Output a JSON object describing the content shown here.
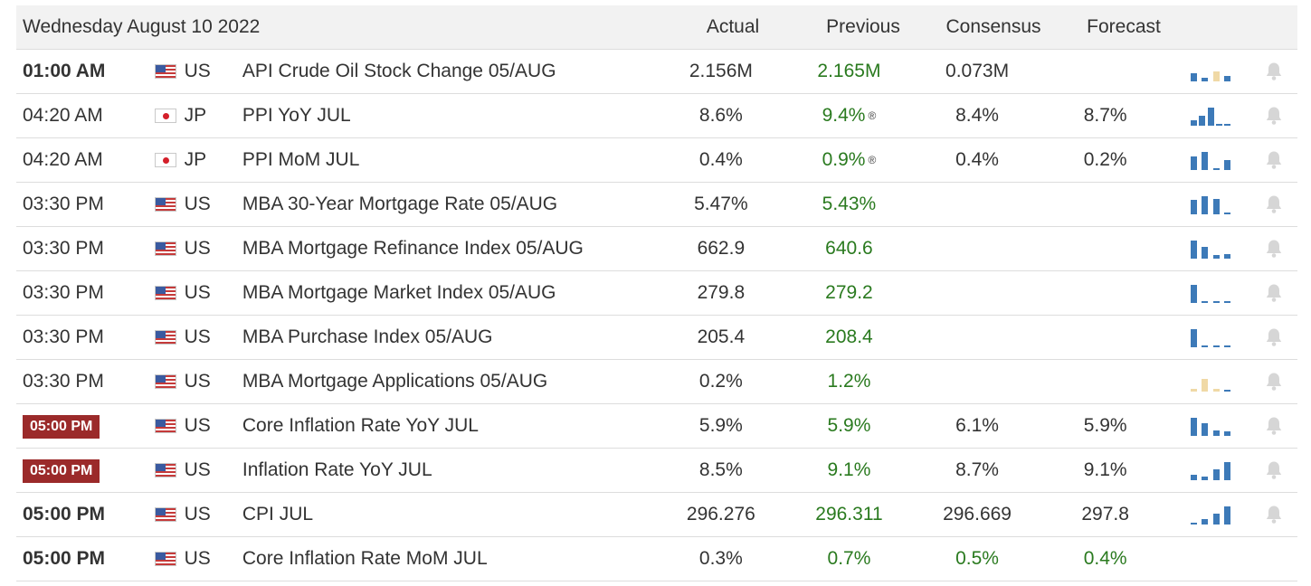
{
  "calendar": {
    "date_label": "Wednesday August 10 2022",
    "columns": {
      "actual": "Actual",
      "previous": "Previous",
      "consensus": "Consensus",
      "forecast": "Forecast"
    },
    "colors": {
      "positive": "#2a7a1f",
      "badge": "#9b2a2a",
      "spark_blue": "#3d7ab8",
      "spark_tan": "#f0d9a6"
    },
    "rows": [
      {
        "time": "01:00 AM",
        "time_style": "bold",
        "flag": "us",
        "country": "US",
        "event": "API Crude Oil Stock Change 05/AUG",
        "actual": "2.156M",
        "previous": "2.165M",
        "revised": "",
        "consensus": "0.073M",
        "forecast": "",
        "spark": [
          {
            "v": 0.45,
            "c": "b"
          },
          {
            "v": 0.2,
            "c": "b"
          },
          {
            "v": 0.55,
            "c": "t"
          },
          {
            "v": 0.3,
            "c": "b"
          }
        ],
        "icon": "bell-icon"
      },
      {
        "time": "04:20 AM",
        "time_style": "normal",
        "flag": "jp",
        "country": "JP",
        "event": "PPI YoY JUL",
        "actual": "8.6%",
        "previous": "9.4%",
        "revised": "®",
        "consensus": "8.4%",
        "forecast": "8.7%",
        "spark": [
          {
            "v": 0.3,
            "c": "b"
          },
          {
            "v": 0.55,
            "c": "b"
          },
          {
            "v": 1.0,
            "c": "b"
          },
          {
            "v": 0.1,
            "c": "b"
          },
          {
            "v": 0.05,
            "c": "b"
          }
        ],
        "icon": "bell-icon"
      },
      {
        "time": "04:20 AM",
        "time_style": "normal",
        "flag": "jp",
        "country": "JP",
        "event": "PPI MoM JUL",
        "actual": "0.4%",
        "previous": "0.9%",
        "revised": "®",
        "consensus": "0.4%",
        "forecast": "0.2%",
        "spark": [
          {
            "v": 0.75,
            "c": "b"
          },
          {
            "v": 1.0,
            "c": "b"
          },
          {
            "v": 0.0,
            "c": "b"
          },
          {
            "v": 0.55,
            "c": "b"
          }
        ],
        "icon": "bell-icon"
      },
      {
        "time": "03:30 PM",
        "time_style": "normal",
        "flag": "us",
        "country": "US",
        "event": "MBA 30-Year Mortgage Rate 05/AUG",
        "actual": "5.47%",
        "previous": "5.43%",
        "revised": "",
        "consensus": "",
        "forecast": "",
        "spark": [
          {
            "v": 0.8,
            "c": "b"
          },
          {
            "v": 1.0,
            "c": "b"
          },
          {
            "v": 0.85,
            "c": "b"
          },
          {
            "v": 0.05,
            "c": "b"
          }
        ],
        "icon": "bell-icon"
      },
      {
        "time": "03:30 PM",
        "time_style": "normal",
        "flag": "us",
        "country": "US",
        "event": "MBA Mortgage Refinance Index 05/AUG",
        "actual": "662.9",
        "previous": "640.6",
        "revised": "",
        "consensus": "",
        "forecast": "",
        "spark": [
          {
            "v": 1.0,
            "c": "b"
          },
          {
            "v": 0.65,
            "c": "b"
          },
          {
            "v": 0.2,
            "c": "b"
          },
          {
            "v": 0.25,
            "c": "b"
          }
        ],
        "icon": "bell-icon"
      },
      {
        "time": "03:30 PM",
        "time_style": "normal",
        "flag": "us",
        "country": "US",
        "event": "MBA Mortgage Market Index 05/AUG",
        "actual": "279.8",
        "previous": "279.2",
        "revised": "",
        "consensus": "",
        "forecast": "",
        "spark": [
          {
            "v": 1.0,
            "c": "b"
          },
          {
            "v": 0.12,
            "c": "b"
          },
          {
            "v": 0.1,
            "c": "b"
          },
          {
            "v": 0.1,
            "c": "b"
          }
        ],
        "icon": "bell-icon"
      },
      {
        "time": "03:30 PM",
        "time_style": "normal",
        "flag": "us",
        "country": "US",
        "event": "MBA Purchase Index 05/AUG",
        "actual": "205.4",
        "previous": "208.4",
        "revised": "",
        "consensus": "",
        "forecast": "",
        "spark": [
          {
            "v": 1.0,
            "c": "b"
          },
          {
            "v": 0.1,
            "c": "b"
          },
          {
            "v": 0.1,
            "c": "b"
          },
          {
            "v": 0.1,
            "c": "b"
          }
        ],
        "icon": "bell-icon"
      },
      {
        "time": "03:30 PM",
        "time_style": "normal",
        "flag": "us",
        "country": "US",
        "event": "MBA Mortgage Applications 05/AUG",
        "actual": "0.2%",
        "previous": "1.2%",
        "revised": "",
        "consensus": "",
        "forecast": "",
        "spark": [
          {
            "v": 0.15,
            "c": "t"
          },
          {
            "v": 0.7,
            "c": "t"
          },
          {
            "v": 0.15,
            "c": "t"
          },
          {
            "v": 0.1,
            "c": "b"
          }
        ],
        "icon": "bell-icon"
      },
      {
        "time": "05:00 PM",
        "time_style": "badge",
        "flag": "us",
        "country": "US",
        "event": "Core Inflation Rate YoY JUL",
        "actual": "5.9%",
        "previous": "5.9%",
        "revised": "",
        "consensus": "6.1%",
        "forecast": "5.9%",
        "spark": [
          {
            "v": 1.0,
            "c": "b"
          },
          {
            "v": 0.7,
            "c": "b"
          },
          {
            "v": 0.3,
            "c": "b"
          },
          {
            "v": 0.25,
            "c": "b"
          }
        ],
        "icon": "bell-icon"
      },
      {
        "time": "05:00 PM",
        "time_style": "badge",
        "flag": "us",
        "country": "US",
        "event": "Inflation Rate YoY JUL",
        "actual": "8.5%",
        "previous": "9.1%",
        "revised": "",
        "consensus": "8.7%",
        "forecast": "9.1%",
        "spark": [
          {
            "v": 0.3,
            "c": "b"
          },
          {
            "v": 0.2,
            "c": "b"
          },
          {
            "v": 0.6,
            "c": "b"
          },
          {
            "v": 1.0,
            "c": "b"
          }
        ],
        "icon": "bell-icon"
      },
      {
        "time": "05:00 PM",
        "time_style": "bold",
        "flag": "us",
        "country": "US",
        "event": "CPI JUL",
        "actual": "296.276",
        "previous": "296.311",
        "revised": "",
        "consensus": "296.669",
        "forecast": "297.8",
        "spark": [
          {
            "v": 0.12,
            "c": "b"
          },
          {
            "v": 0.3,
            "c": "b"
          },
          {
            "v": 0.6,
            "c": "b"
          },
          {
            "v": 1.0,
            "c": "b"
          }
        ],
        "icon": "bell-icon"
      },
      {
        "time": "05:00 PM",
        "time_style": "bold",
        "flag": "us",
        "country": "US",
        "event": "Core Inflation Rate MoM JUL",
        "actual": "0.3%",
        "previous": "0.7%",
        "revised": "",
        "consensus": "0.5%",
        "forecast": "0.4%",
        "consensus_green": true,
        "forecast_green": true,
        "spark": [],
        "icon": ""
      }
    ]
  }
}
